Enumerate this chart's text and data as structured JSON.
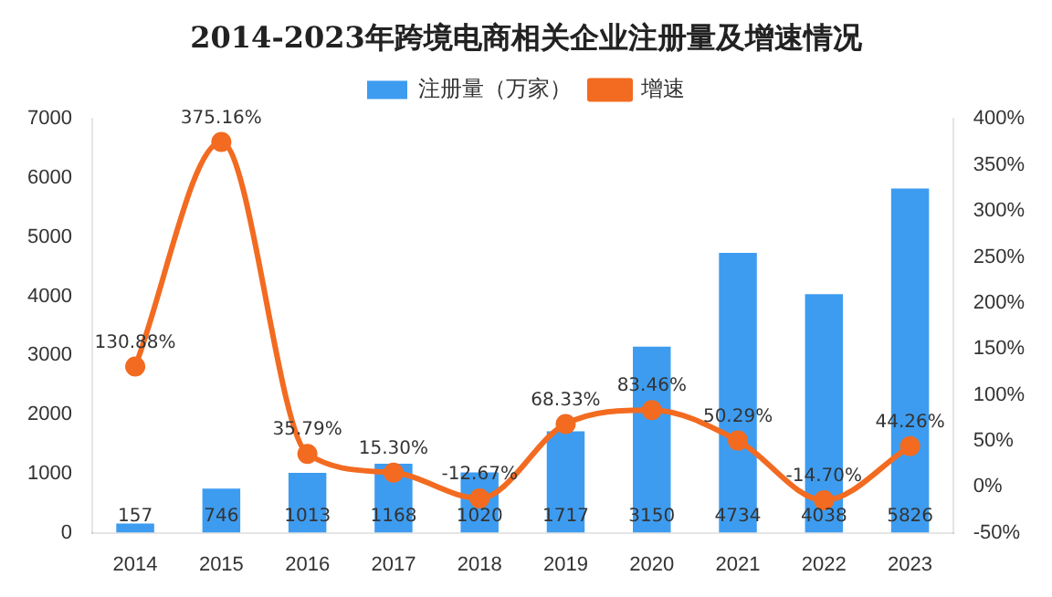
{
  "chart_data": {
    "type": "bar",
    "title": "2014-2023年跨境电商相关企业注册量及增速情况",
    "categories": [
      "2014",
      "2015",
      "2016",
      "2017",
      "2018",
      "2019",
      "2020",
      "2021",
      "2022",
      "2023"
    ],
    "series": [
      {
        "name": "注册量（万家）",
        "color": "#3d9cf0",
        "values": [
          157,
          746,
          1013,
          1168,
          1020,
          1717,
          3150,
          4734,
          4038,
          5826
        ]
      },
      {
        "name": "增速",
        "type": "line",
        "axis": "y2",
        "color": "#f26b21",
        "values": [
          130.88,
          375.16,
          35.79,
          15.3,
          -12.67,
          68.33,
          83.46,
          50.29,
          -14.7,
          44.26
        ],
        "value_labels": [
          "130.88%",
          "375.16%",
          "35.79%",
          "15.30%",
          "-12.67%",
          "68.33%",
          "83.46%",
          "50.29%",
          "-14.70%",
          "44.26%"
        ]
      }
    ],
    "ylim": [
      0,
      7000
    ],
    "yticks": [
      0,
      1000,
      2000,
      3000,
      4000,
      5000,
      6000,
      7000
    ],
    "y2lim": [
      -50,
      400
    ],
    "y2ticks": [
      {
        "value": -50,
        "label": "-50%"
      },
      {
        "value": 0,
        "label": "0%"
      },
      {
        "value": 50,
        "label": "50%"
      },
      {
        "value": 100,
        "label": "100%"
      },
      {
        "value": 150,
        "label": "150%"
      },
      {
        "value": 200,
        "label": "200%"
      },
      {
        "value": 250,
        "label": "250%"
      },
      {
        "value": 300,
        "label": "300%"
      },
      {
        "value": 350,
        "label": "350%"
      },
      {
        "value": 400,
        "label": "400%"
      }
    ],
    "data_labels": true,
    "legend": "top",
    "grid": false,
    "marker": "circle",
    "line_style": "solid"
  }
}
